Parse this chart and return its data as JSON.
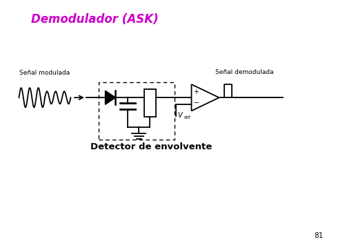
{
  "title": "Demodulador (ASK)",
  "title_color": "#CC00CC",
  "title_fontsize": 12,
  "title_style": "italic",
  "title_weight": "bold",
  "label_senal_modulada": "Señal modulada",
  "label_senal_demodulada": "Señal demodulada",
  "label_detector": "Detector de envolvente",
  "label_vref": "V",
  "label_vref_sub": "ref",
  "page_number": "81",
  "bg_color": "#FFFFFF",
  "line_color": "#000000",
  "lw": 1.3
}
